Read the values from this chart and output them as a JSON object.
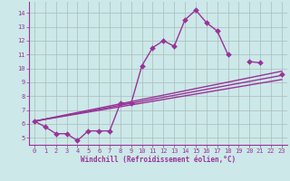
{
  "xlabel": "Windchill (Refroidissement éolien,°C)",
  "background_color": "#cce8e8",
  "grid_color": "#aabbbb",
  "line_color": "#993399",
  "xlim": [
    -0.5,
    23.5
  ],
  "ylim": [
    4.5,
    14.8
  ],
  "xticks": [
    0,
    1,
    2,
    3,
    4,
    5,
    6,
    7,
    8,
    9,
    10,
    11,
    12,
    13,
    14,
    15,
    16,
    17,
    18,
    19,
    20,
    21,
    22,
    23
  ],
  "yticks": [
    5,
    6,
    7,
    8,
    9,
    10,
    11,
    12,
    13,
    14
  ],
  "main_x": [
    0,
    1,
    2,
    3,
    4,
    5,
    6,
    7,
    8,
    9,
    10,
    11,
    12,
    13,
    14,
    15,
    16,
    17,
    18,
    19,
    20,
    21,
    22,
    23
  ],
  "main_y": [
    6.2,
    5.8,
    5.3,
    5.3,
    4.8,
    5.5,
    5.5,
    5.5,
    7.5,
    7.5,
    10.2,
    11.5,
    12.0,
    11.6,
    13.5,
    14.2,
    13.3,
    12.7,
    11.0,
    null,
    10.5,
    10.4,
    null,
    9.6
  ],
  "straight_lines": [
    {
      "x": [
        0,
        23
      ],
      "y": [
        6.2,
        9.8
      ]
    },
    {
      "x": [
        0,
        23
      ],
      "y": [
        6.2,
        9.5
      ]
    },
    {
      "x": [
        0,
        23
      ],
      "y": [
        6.2,
        9.2
      ]
    }
  ],
  "font_size": 5.5,
  "marker_size": 3,
  "linewidth": 1.0
}
